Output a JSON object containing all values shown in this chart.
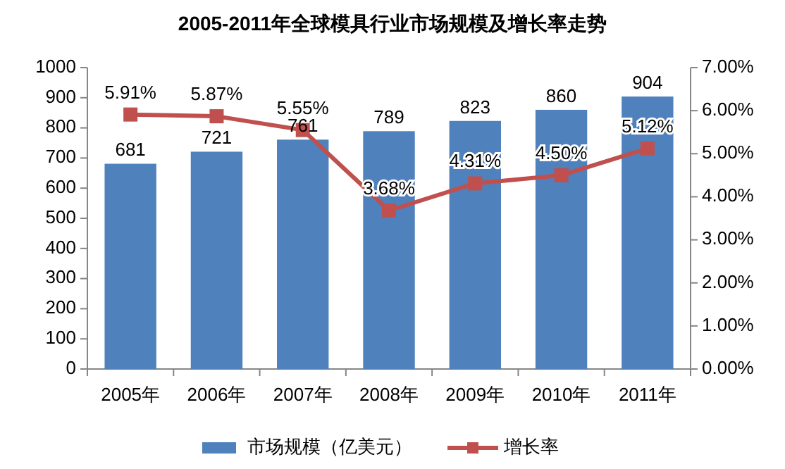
{
  "chart_data": {
    "type": "bar",
    "title": "2005-2011年全球模具行业市场规模及增长率走势",
    "categories": [
      "2005年",
      "2006年",
      "2007年",
      "2008年",
      "2009年",
      "2010年",
      "2011年"
    ],
    "series": [
      {
        "name": "市场规模（亿美元）",
        "color": "#4f81bd",
        "values": [
          681,
          721,
          761,
          789,
          823,
          860,
          904
        ],
        "value_labels": [
          "681",
          "721",
          "761",
          "789",
          "823",
          "860",
          "904"
        ]
      },
      {
        "name": "增长率",
        "type": "line",
        "axis": "y2",
        "color": "#c0504d",
        "values": [
          5.91,
          5.87,
          5.55,
          3.68,
          4.31,
          4.5,
          5.12
        ],
        "value_labels": [
          "5.91%",
          "5.87%",
          "5.55%",
          "3.68%",
          "4.31%",
          "4.50%",
          "5.12%"
        ]
      }
    ],
    "ylim": [
      0,
      1000
    ],
    "yticks": [
      0,
      100,
      200,
      300,
      400,
      500,
      600,
      700,
      800,
      900,
      1000
    ],
    "y2lim": [
      0,
      7
    ],
    "y2ticks": [
      {
        "value": 0,
        "label": "0.00%"
      },
      {
        "value": 1,
        "label": "1.00%"
      },
      {
        "value": 2,
        "label": "2.00%"
      },
      {
        "value": 3,
        "label": "3.00%"
      },
      {
        "value": 4,
        "label": "4.00%"
      },
      {
        "value": 5,
        "label": "5.00%"
      },
      {
        "value": 6,
        "label": "6.00%"
      },
      {
        "value": 7,
        "label": "7.00%"
      }
    ],
    "marker": "square",
    "legend": "bottom"
  }
}
